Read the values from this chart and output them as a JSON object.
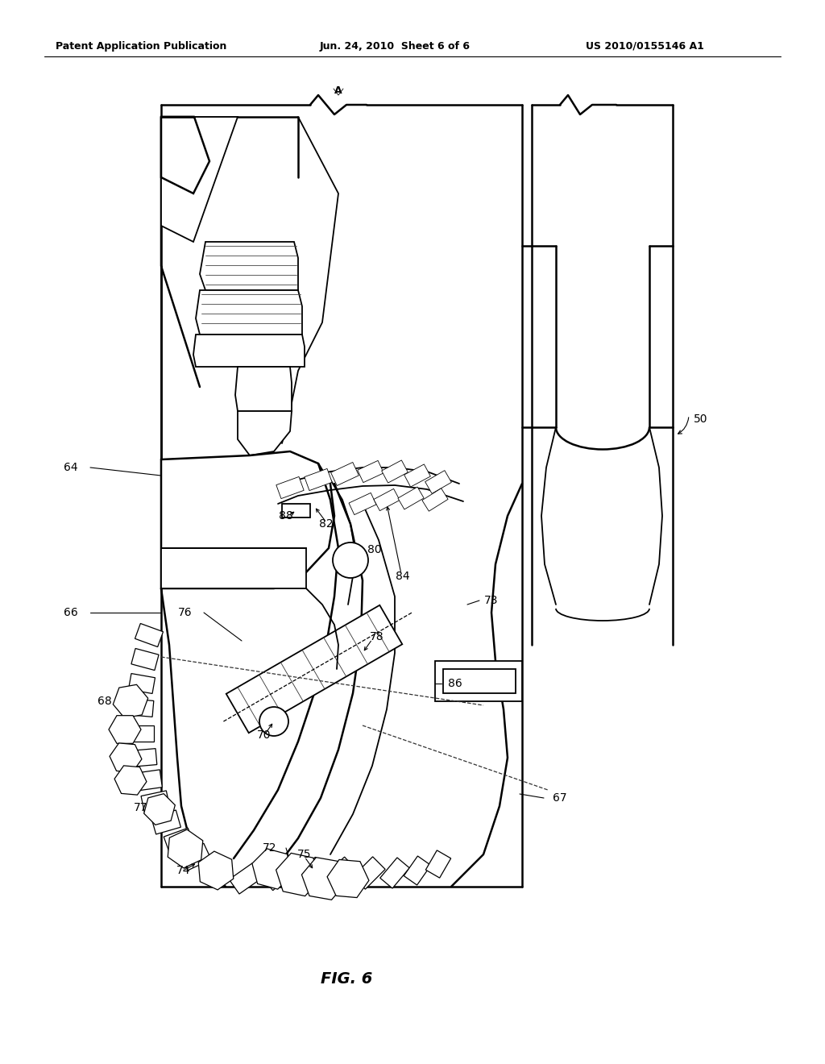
{
  "bg_color": "#ffffff",
  "line_color": "#000000",
  "header_left": "Patent Application Publication",
  "header_center": "Jun. 24, 2010  Sheet 6 of 6",
  "header_right": "US 2010/0155146 A1",
  "figure_label": "FIG. 6",
  "lw_heavy": 1.8,
  "lw_med": 1.3,
  "lw_light": 0.9,
  "lw_thin": 0.6,
  "label_fs": 10
}
